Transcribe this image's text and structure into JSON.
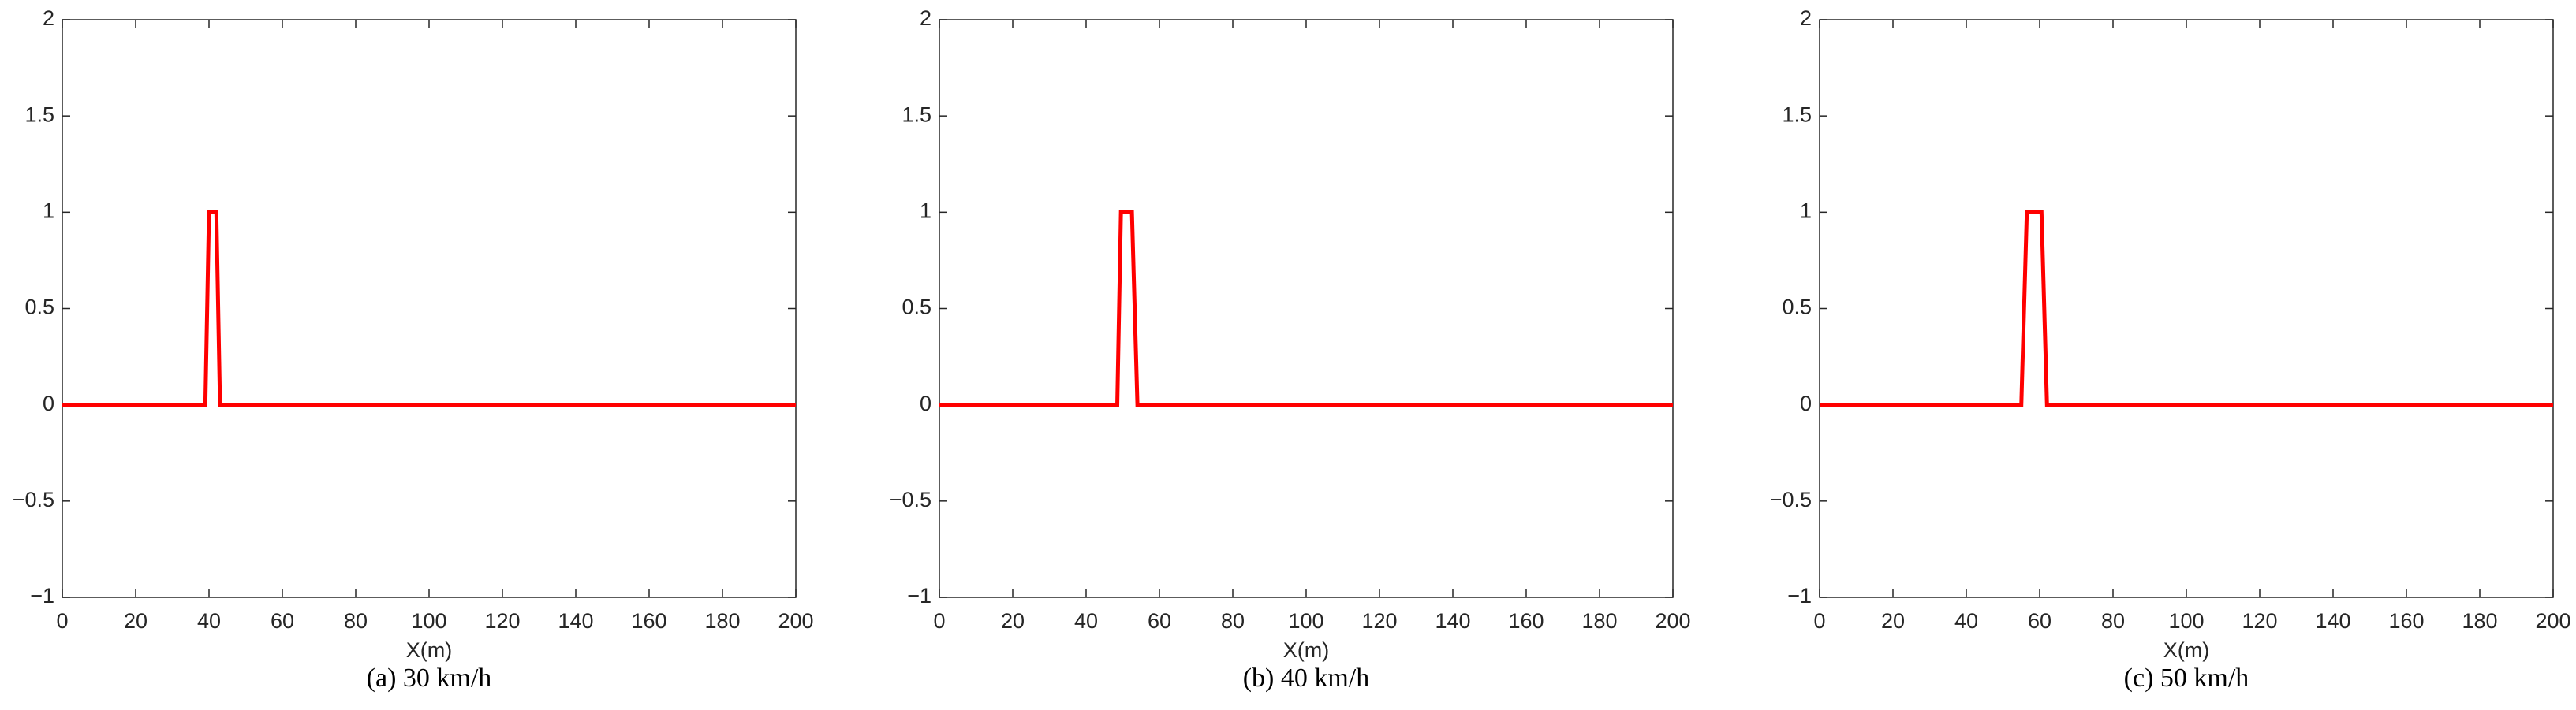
{
  "chart_data": [
    {
      "type": "line",
      "caption": "(a) 30 km/h",
      "xlabel": "X(m)",
      "x": [
        0,
        39,
        40,
        42,
        43,
        200
      ],
      "values": [
        0,
        0,
        1,
        1,
        0,
        0
      ],
      "color": "#ff0000",
      "xlim": [
        0,
        200
      ],
      "xticks": [
        0,
        20,
        40,
        60,
        80,
        100,
        120,
        140,
        160,
        180,
        200
      ],
      "ylim": [
        -1,
        2
      ],
      "yticks": [
        {
          "value": -1,
          "label": "−1"
        },
        {
          "value": -0.5,
          "label": "−0.5"
        },
        0,
        0.5,
        1,
        1.5,
        2
      ],
      "grid": false
    },
    {
      "type": "line",
      "caption": "(b) 40 km/h",
      "xlabel": "X(m)",
      "x": [
        0,
        48.5,
        49.5,
        52.5,
        54,
        200
      ],
      "values": [
        0,
        0,
        1,
        1,
        0,
        0
      ],
      "color": "#ff0000",
      "xlim": [
        0,
        200
      ],
      "xticks": [
        0,
        20,
        40,
        60,
        80,
        100,
        120,
        140,
        160,
        180,
        200
      ],
      "ylim": [
        -1,
        2
      ],
      "yticks": [
        {
          "value": -1,
          "label": "−1"
        },
        {
          "value": -0.5,
          "label": "−0.5"
        },
        0,
        0.5,
        1,
        1.5,
        2
      ],
      "grid": false
    },
    {
      "type": "line",
      "caption": "(c) 50 km/h",
      "xlabel": "X(m)",
      "x": [
        0,
        55,
        56.5,
        60.5,
        62,
        200
      ],
      "values": [
        0,
        0,
        1,
        1,
        0,
        0
      ],
      "color": "#ff0000",
      "xlim": [
        0,
        200
      ],
      "xticks": [
        0,
        20,
        40,
        60,
        80,
        100,
        120,
        140,
        160,
        180,
        200
      ],
      "ylim": [
        -1,
        2
      ],
      "yticks": [
        {
          "value": -1,
          "label": "−1"
        },
        {
          "value": -0.5,
          "label": "−0.5"
        },
        0,
        0.5,
        1,
        1.5,
        2
      ],
      "grid": false
    }
  ]
}
